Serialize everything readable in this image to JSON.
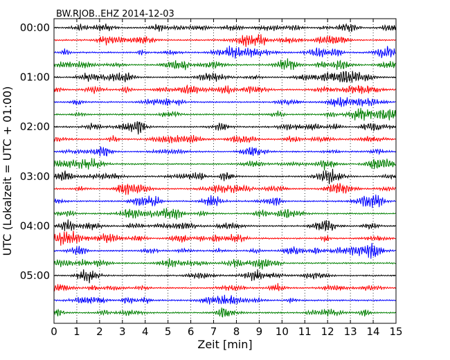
{
  "chart_data": {
    "type": "line",
    "title": "BW.RJOB..EHZ 2014-12-03",
    "xlabel": "Zeit  [min]",
    "ylabel": "UTC (Lokalzeit = UTC + 01:00)",
    "xlim": [
      0,
      15
    ],
    "x_ticks": [
      "0",
      "1",
      "2",
      "3",
      "4",
      "5",
      "6",
      "7",
      "8",
      "9",
      "10",
      "11",
      "12",
      "13",
      "14",
      "15"
    ],
    "y_tick_labels": [
      "00:00",
      "01:00",
      "02:00",
      "03:00",
      "04:00",
      "05:00"
    ],
    "grid": "vertical dotted lines at each minute",
    "trace_interval_minutes": 15,
    "trace_count": 24,
    "trace_colors": [
      "#000000",
      "#ff0000",
      "#0000ff",
      "#007f00"
    ],
    "series": [
      {
        "start": "00:00",
        "color": "#000000"
      },
      {
        "start": "00:15",
        "color": "#ff0000"
      },
      {
        "start": "00:30",
        "color": "#0000ff"
      },
      {
        "start": "00:45",
        "color": "#007f00"
      },
      {
        "start": "01:00",
        "color": "#000000"
      },
      {
        "start": "01:15",
        "color": "#ff0000"
      },
      {
        "start": "01:30",
        "color": "#0000ff"
      },
      {
        "start": "01:45",
        "color": "#007f00"
      },
      {
        "start": "02:00",
        "color": "#000000"
      },
      {
        "start": "02:15",
        "color": "#ff0000"
      },
      {
        "start": "02:30",
        "color": "#0000ff"
      },
      {
        "start": "02:45",
        "color": "#007f00"
      },
      {
        "start": "03:00",
        "color": "#000000"
      },
      {
        "start": "03:15",
        "color": "#ff0000"
      },
      {
        "start": "03:30",
        "color": "#0000ff"
      },
      {
        "start": "03:45",
        "color": "#007f00"
      },
      {
        "start": "04:00",
        "color": "#000000"
      },
      {
        "start": "04:15",
        "color": "#ff0000"
      },
      {
        "start": "04:30",
        "color": "#0000ff"
      },
      {
        "start": "04:45",
        "color": "#007f00"
      },
      {
        "start": "05:00",
        "color": "#000000"
      },
      {
        "start": "05:15",
        "color": "#ff0000"
      },
      {
        "start": "05:30",
        "color": "#0000ff"
      },
      {
        "start": "05:45",
        "color": "#007f00"
      }
    ]
  }
}
